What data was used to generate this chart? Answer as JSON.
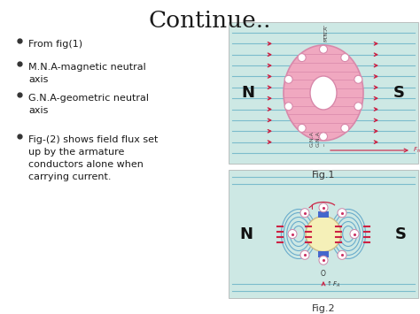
{
  "title": "Continue..",
  "bg_color": "#ffffff",
  "title_color": "#1a1a1a",
  "bullet_color": "#1a1a1a",
  "bullets": [
    "From fig(1)",
    "M.N.A-magnetic neutral\naxis",
    "G.N.A-geometric neutral\naxis",
    "Fig-(2) shows field flux set\nup by the armature\nconductors alone when\ncarrying current."
  ],
  "fig1_label": "Fig.1",
  "fig2_label": "Fig.2",
  "fig_bg": "#cde8e4",
  "line_color": "#7bbccc",
  "arrow_color": "#cc2244",
  "rotor_pink": "#f0a8c0",
  "rotor_edge": "#d888aa",
  "flux_loop_color": "#6aaccc",
  "armature2_color": "#f5f0b8",
  "brush_color": "#4466cc"
}
